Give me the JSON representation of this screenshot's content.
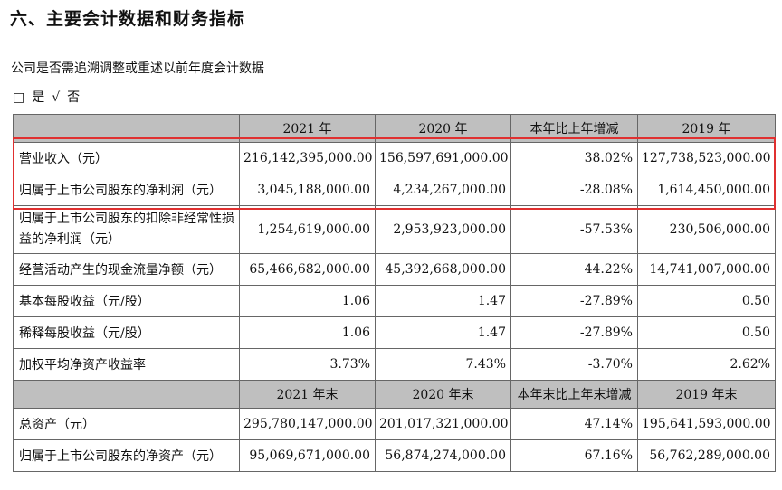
{
  "title": "六、主要会计数据和财务指标",
  "question": "公司是否需追溯调整或重述以前年度会计数据",
  "answer": {
    "box_no": "□",
    "yes": "是",
    "check": "√",
    "no": "否"
  },
  "header1": [
    "",
    "2021 年",
    "2020 年",
    "本年比上年增减",
    "2019 年"
  ],
  "header2": [
    "",
    "2021 年末",
    "2020 年末",
    "本年末比上年末增减",
    "2019 年末"
  ],
  "rows1": [
    [
      "营业收入（元）",
      "216,142,395,000.00",
      "156,597,691,000.00",
      "38.02%",
      "127,738,523,000.00"
    ],
    [
      "归属于上市公司股东的净利润（元）",
      "3,045,188,000.00",
      "4,234,267,000.00",
      "-28.08%",
      "1,614,450,000.00"
    ],
    [
      "归属于上市公司股东的扣除非经常性损益的净利润（元）",
      "1,254,619,000.00",
      "2,953,923,000.00",
      "-57.53%",
      "230,506,000.00"
    ],
    [
      "经营活动产生的现金流量净额（元）",
      "65,466,682,000.00",
      "45,392,668,000.00",
      "44.22%",
      "14,741,007,000.00"
    ],
    [
      "基本每股收益（元/股）",
      "1.06",
      "1.47",
      "-27.89%",
      "0.50"
    ],
    [
      "稀释每股收益（元/股）",
      "1.06",
      "1.47",
      "-27.89%",
      "0.50"
    ],
    [
      "加权平均净资产收益率",
      "3.73%",
      "7.43%",
      "-3.70%",
      "2.62%"
    ]
  ],
  "rows2": [
    [
      "总资产（元）",
      "295,780,147,000.00",
      "201,017,321,000.00",
      "47.14%",
      "195,641,593,000.00"
    ],
    [
      "归属于上市公司股东的净资产（元）",
      "95,069,671,000.00",
      "56,874,274,000.00",
      "67.16%",
      "56,762,289,000.00"
    ]
  ],
  "colors": {
    "header_bg": "#bfbfbf",
    "highlight_border": "#e03030"
  }
}
